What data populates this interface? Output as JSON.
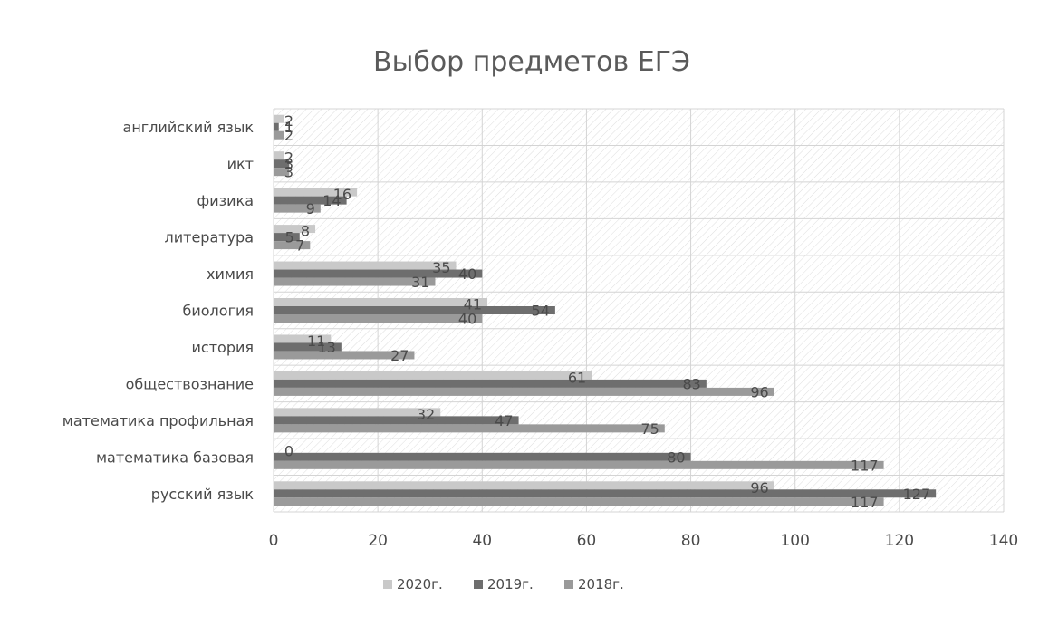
{
  "chart_data": {
    "type": "bar",
    "orientation": "horizontal",
    "title": "Выбор предметов ЕГЭ",
    "xlabel": "",
    "ylabel": "",
    "xlim": [
      0,
      140
    ],
    "x_ticks": [
      "0",
      "20",
      "40",
      "60",
      "80",
      "100",
      "120",
      "140"
    ],
    "x_tick_values": [
      0,
      20,
      40,
      60,
      80,
      100,
      120,
      140
    ],
    "grid": true,
    "legend_position": "bottom",
    "categories": [
      "английский язык",
      "икт",
      "физика",
      "литература",
      "химия",
      "биология",
      "история",
      "обществознание",
      "математика профильная",
      "математика базовая",
      "русский язык"
    ],
    "series": [
      {
        "name": "2020г.",
        "color": "#c9c9c9",
        "values": [
          2,
          2,
          16,
          8,
          35,
          41,
          11,
          61,
          32,
          0,
          96
        ],
        "labels": [
          "2",
          "2",
          "16",
          "8",
          "35",
          "41",
          "11",
          "61",
          "32",
          "0",
          "96"
        ]
      },
      {
        "name": "2019г.",
        "color": "#6e6e6e",
        "values": [
          1,
          3,
          14,
          5,
          40,
          54,
          13,
          83,
          47,
          80,
          127
        ],
        "labels": [
          "1",
          "3",
          "14",
          "5",
          "40",
          "54",
          "13",
          "83",
          "47",
          "80",
          "127"
        ]
      },
      {
        "name": "2018г.",
        "color": "#9a9a9a",
        "values": [
          2,
          3,
          9,
          7,
          31,
          40,
          27,
          96,
          75,
          117,
          117
        ],
        "labels": [
          "2",
          "3",
          "9",
          "7",
          "31",
          "40",
          "27",
          "96",
          "75",
          "117",
          "117"
        ]
      }
    ]
  }
}
